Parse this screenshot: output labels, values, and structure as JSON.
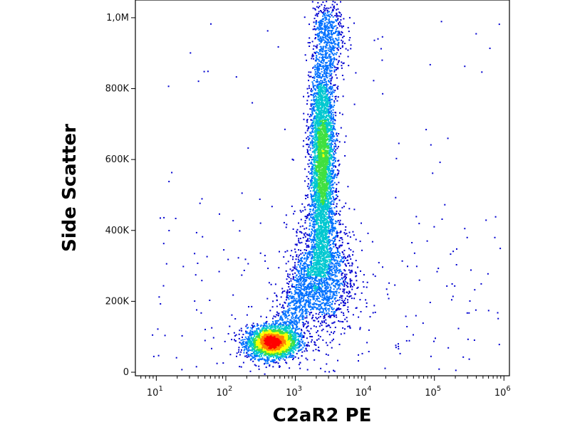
{
  "chart_data": {
    "type": "scatter",
    "title": "",
    "xlabel": "C2aR2 PE",
    "ylabel": "Side Scatter",
    "x_scale": "log",
    "xlim": [
      5,
      1200000
    ],
    "ylim": [
      -10000,
      1050000
    ],
    "grid": false,
    "x_ticks": [
      {
        "value": 10,
        "base": "10",
        "exp": "1"
      },
      {
        "value": 100,
        "base": "10",
        "exp": "2"
      },
      {
        "value": 1000,
        "base": "10",
        "exp": "3"
      },
      {
        "value": 10000,
        "base": "10",
        "exp": "4"
      },
      {
        "value": 100000,
        "base": "10",
        "exp": "5"
      },
      {
        "value": 1000000,
        "base": "10",
        "exp": "6"
      }
    ],
    "y_ticks": [
      {
        "value": 0,
        "label": "0"
      },
      {
        "value": 200000,
        "label": "200K"
      },
      {
        "value": 400000,
        "label": "400K"
      },
      {
        "value": 600000,
        "label": "600K"
      },
      {
        "value": 800000,
        "label": "800K"
      },
      {
        "value": 1000000,
        "label": "1,0M"
      }
    ],
    "color_scale": [
      "#0000d0",
      "#0070ff",
      "#00c8d0",
      "#40e040",
      "#ffff00",
      "#ff8000",
      "#ff0000"
    ],
    "populations": [
      {
        "center_x": 450,
        "center_y": 85000,
        "spread_log_x": 0.18,
        "spread_y": 22000,
        "density": "high"
      },
      {
        "center_x": 2400,
        "center_y": 600000,
        "spread_log_x": 0.09,
        "spread_y": 150000,
        "density": "high"
      },
      {
        "center_x": 2500,
        "center_y": 280000,
        "spread_log_x": 0.22,
        "spread_y": 90000,
        "density": "medium"
      },
      {
        "center_x": 3000,
        "center_y": 950000,
        "spread_log_x": 0.12,
        "spread_y": 60000,
        "density": "medium"
      }
    ]
  }
}
